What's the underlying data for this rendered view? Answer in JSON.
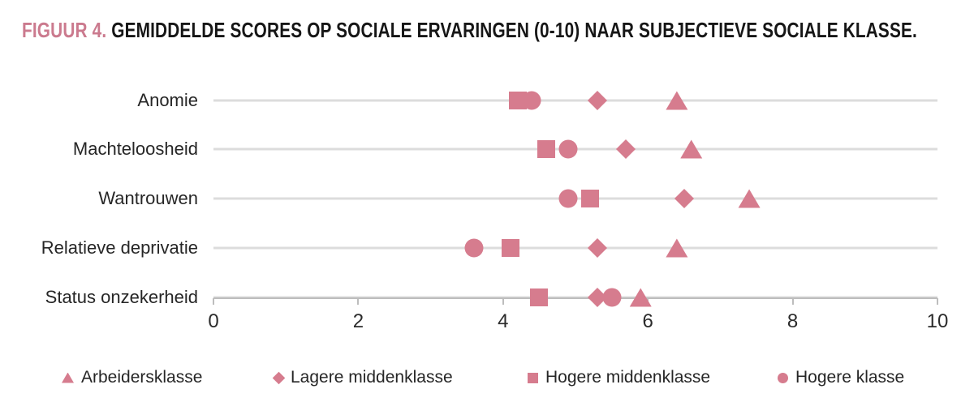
{
  "title": {
    "prefix": "FIGUUR 4.",
    "main": "GEMIDDELDE SCORES OP SOCIALE ERVARINGEN (0-10) NAAR SUBJECTIEVE SOCIALE KLASSE."
  },
  "colors": {
    "marker": "#d67c8e",
    "title_accent": "#cb7a8e",
    "row_line": "#dcdcdc",
    "axis_line": "#bdbdbd",
    "text": "#262626"
  },
  "chart_data": {
    "type": "scatter",
    "title": "Gemiddelde scores op sociale ervaringen (0-10) naar subjectieve sociale klasse",
    "categories": [
      "Anomie",
      "Machteloosheid",
      "Wantrouwen",
      "Relatieve deprivatie",
      "Status onzekerheid"
    ],
    "xlim": [
      0,
      10
    ],
    "xticks": [
      0,
      2,
      4,
      6,
      8,
      10
    ],
    "grid": "horizontal-row-lines",
    "legend_position": "bottom",
    "series": [
      {
        "name": "Arbeidersklasse",
        "marker": "triangle",
        "values": [
          6.4,
          6.6,
          7.4,
          6.4,
          5.9
        ]
      },
      {
        "name": "Lagere middenklasse",
        "marker": "diamond",
        "values": [
          5.3,
          5.7,
          6.5,
          5.3,
          5.3
        ]
      },
      {
        "name": "Hogere middenklasse",
        "marker": "square",
        "values": [
          4.2,
          4.6,
          5.2,
          4.1,
          4.5
        ]
      },
      {
        "name": "Hogere klasse",
        "marker": "circle",
        "values": [
          4.4,
          4.9,
          4.9,
          3.6,
          5.5
        ]
      }
    ]
  }
}
